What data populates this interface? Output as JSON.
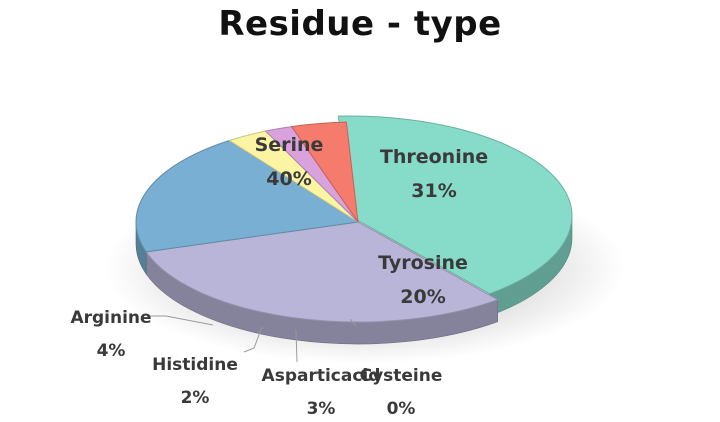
{
  "chart_data": {
    "type": "pie",
    "title": "Residue - type",
    "slices": [
      {
        "label": "Serine",
        "pct_label": "40%",
        "value": 40,
        "color": "#86dbc9"
      },
      {
        "label": "Threonine",
        "pct_label": "31%",
        "value": 31,
        "color": "#b9b5d8"
      },
      {
        "label": "Tyrosine",
        "pct_label": "20%",
        "value": 20,
        "color": "#78afd2"
      },
      {
        "label": "Cysteine",
        "pct_label": "0%",
        "value": 0,
        "color": "#f1e7a3"
      },
      {
        "label": "Asparticacid",
        "pct_label": "3%",
        "value": 3,
        "color": "#fbf4a2"
      },
      {
        "label": "Histidine",
        "pct_label": "2%",
        "value": 2,
        "color": "#d9a2dc"
      },
      {
        "label": "Arginine",
        "pct_label": "4%",
        "value": 4,
        "color": "#f57b6d"
      }
    ],
    "legend": "none"
  }
}
